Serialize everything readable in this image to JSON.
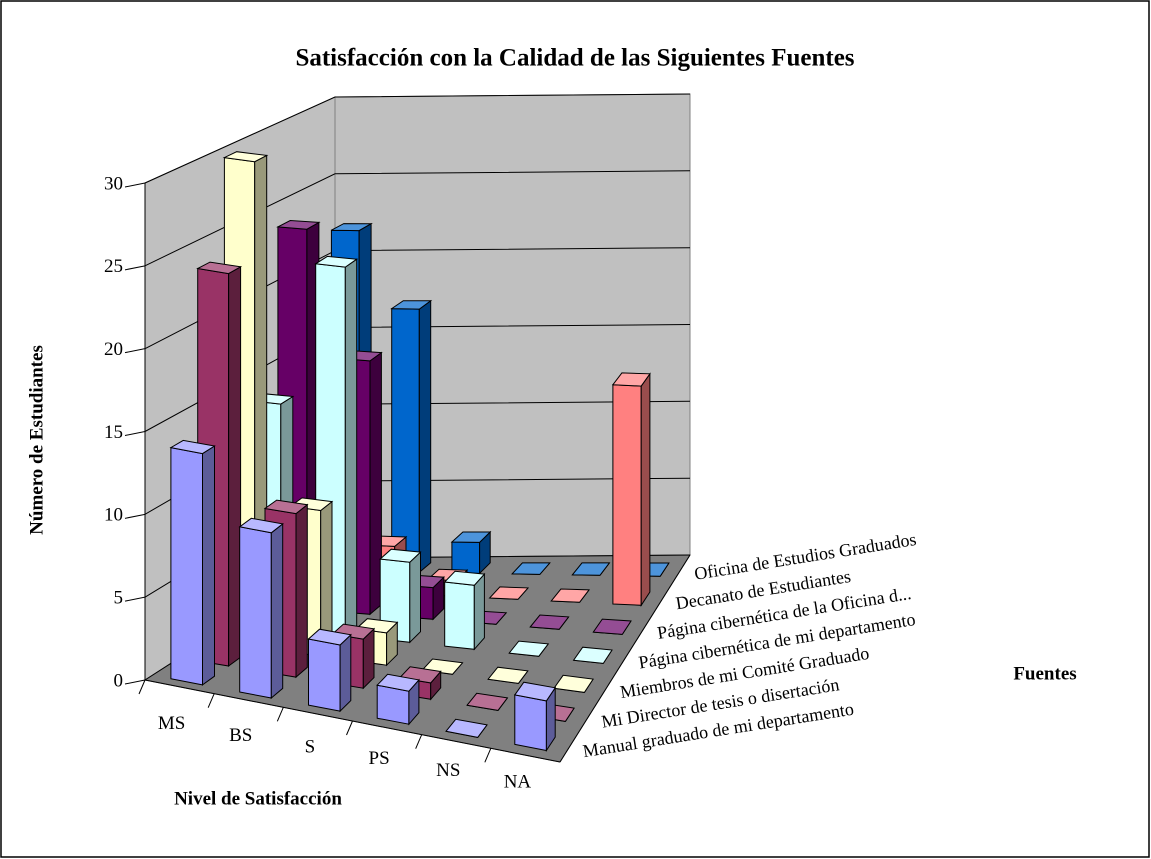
{
  "chart_data": {
    "type": "bar3d",
    "title": "Satisfacción con la Calidad de las Siguientes Fuentes",
    "y_label": "Número de Estudiantes",
    "x_label": "Nivel de Satisfacción",
    "z_label": "Fuentes",
    "categories": [
      "MS",
      "BS",
      "S",
      "PS",
      "NS",
      "NA"
    ],
    "series": [
      {
        "name": "Manual graduado de mi departamento",
        "color": "#9999ff",
        "values": [
          14,
          10,
          4,
          2,
          0,
          3
        ]
      },
      {
        "name": "Mi Director de tesis o disertación",
        "color": "#993366",
        "values": [
          24,
          10,
          3,
          1,
          0,
          0
        ]
      },
      {
        "name": "Miembros de mi Comité Graduado",
        "color": "#ffffcc",
        "values": [
          30,
          9,
          2,
          0,
          0,
          0
        ]
      },
      {
        "name": "Página cibernética de mi departamento",
        "color": "#ccffff",
        "values": [
          14,
          23,
          5,
          4,
          0,
          0
        ]
      },
      {
        "name": "Página cibernética de la Oficina d...",
        "color": "#660066",
        "values": [
          24,
          16,
          2,
          0,
          0,
          0
        ]
      },
      {
        "name": "Decanato de Estudiantes",
        "color": "#ff8080",
        "values": [
          17,
          3,
          1,
          0,
          0,
          14
        ]
      },
      {
        "name": "Oficina de Estudios Graduados",
        "color": "#0066cc",
        "values": [
          22,
          17,
          2,
          0,
          0,
          0
        ]
      }
    ],
    "ylim": [
      0,
      30
    ],
    "yticks": [
      0,
      5,
      10,
      15,
      20,
      25,
      30
    ],
    "grid": true
  }
}
